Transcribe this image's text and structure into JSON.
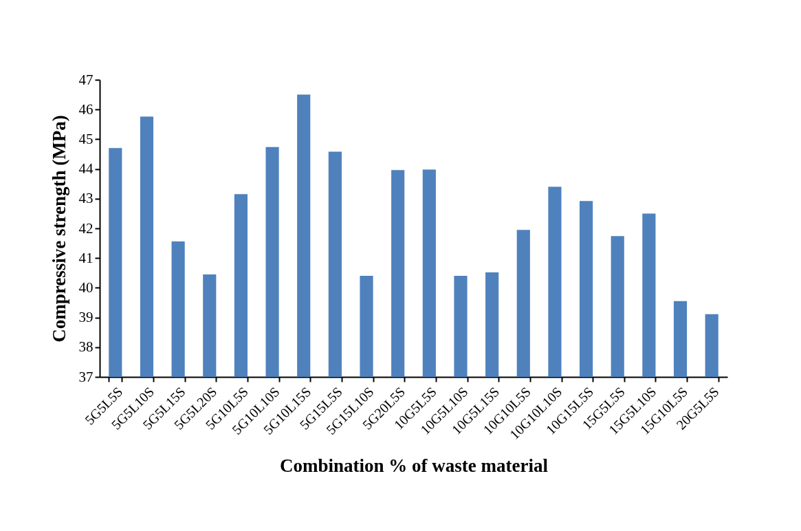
{
  "chart_data": {
    "type": "bar",
    "xlabel": "Combination % of waste material",
    "ylabel": "Compressive strength (MPa)",
    "categories": [
      "5G5L5S",
      "5G5L10S",
      "5G5L15S",
      "5G5L20S",
      "5G10L5S",
      "5G10L10S",
      "5G10L15S",
      "5G15L5S",
      "5G15L10S",
      "5G20L5S",
      "10G5L5S",
      "10G5L10S",
      "10G5L15S",
      "10G10L5S",
      "10G10L10S",
      "10G15L5S",
      "15G5L5S",
      "15G5L10S",
      "15G10L5S",
      "20G5L5S"
    ],
    "values": [
      44.7,
      45.76,
      41.56,
      40.45,
      43.15,
      44.74,
      46.5,
      44.58,
      40.4,
      43.96,
      43.98,
      40.4,
      40.52,
      41.95,
      43.4,
      42.92,
      41.74,
      42.5,
      39.55,
      39.11
    ],
    "color": "#4f81bd",
    "ylim": [
      37,
      47
    ],
    "yticks": [
      37,
      38,
      39,
      40,
      41,
      42,
      43,
      44,
      45,
      46,
      47
    ],
    "grid": false
  }
}
